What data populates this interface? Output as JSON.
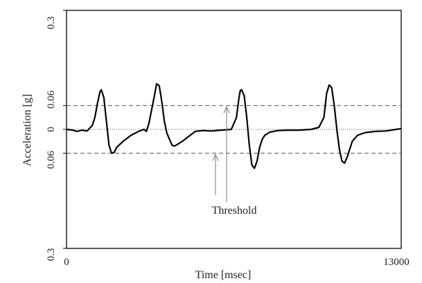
{
  "chart_data": {
    "type": "line",
    "title": "",
    "xlabel": "Time [msec]",
    "ylabel": "Acceleration [g]",
    "xlim": [
      0,
      13000
    ],
    "ylim": [
      -0.3,
      0.3
    ],
    "x_tick_labels": [
      "0",
      "13000"
    ],
    "y_tick_labels": [
      "0.3",
      "0.06",
      "0",
      "0.06",
      "0.3"
    ],
    "grid": false,
    "legend": "none",
    "threshold_values": [
      0.06,
      -0.06
    ],
    "annotation": "Threshold",
    "series": [
      {
        "x": [
          0,
          250,
          400,
          600,
          800,
          1000,
          1100,
          1200,
          1300,
          1350,
          1450,
          1550,
          1650,
          1750,
          1850,
          1950,
          2200,
          2500,
          2800,
          3000,
          3100,
          3200,
          3400,
          3500,
          3600,
          3700,
          3800,
          3900,
          4000,
          4100,
          4200,
          4300,
          4500,
          4800,
          5000,
          5300,
          5600,
          6000,
          6400,
          6600,
          6700,
          6750,
          6800,
          6900,
          7000,
          7100,
          7200,
          7300,
          7400,
          7500,
          7600,
          7700,
          7900,
          8200,
          8600,
          9000,
          9500,
          9800,
          10000,
          10100,
          10200,
          10300,
          10400,
          10500,
          10600,
          10700,
          10800,
          10900,
          11000,
          11100,
          11300,
          11600,
          12000,
          12400,
          12800,
          13000
        ],
        "y": [
          0,
          -0.002,
          -0.005,
          -0.002,
          -0.004,
          0.01,
          0.03,
          0.065,
          0.095,
          0.1,
          0.08,
          0.02,
          -0.04,
          -0.06,
          -0.058,
          -0.045,
          -0.03,
          -0.015,
          -0.005,
          0.0,
          -0.005,
          0.015,
          0.08,
          0.115,
          0.11,
          0.07,
          0.02,
          -0.01,
          -0.025,
          -0.04,
          -0.042,
          -0.038,
          -0.03,
          -0.015,
          -0.005,
          -0.003,
          -0.004,
          -0.002,
          0.0,
          0.03,
          0.08,
          0.098,
          0.1,
          0.085,
          0.03,
          -0.04,
          -0.09,
          -0.098,
          -0.08,
          -0.045,
          -0.025,
          -0.015,
          -0.007,
          -0.003,
          -0.002,
          -0.002,
          0.0,
          0.005,
          0.03,
          0.09,
          0.112,
          0.105,
          0.06,
          0.0,
          -0.05,
          -0.08,
          -0.085,
          -0.07,
          -0.05,
          -0.03,
          -0.015,
          -0.008,
          -0.005,
          -0.004,
          0.0,
          0.002
        ]
      }
    ]
  }
}
